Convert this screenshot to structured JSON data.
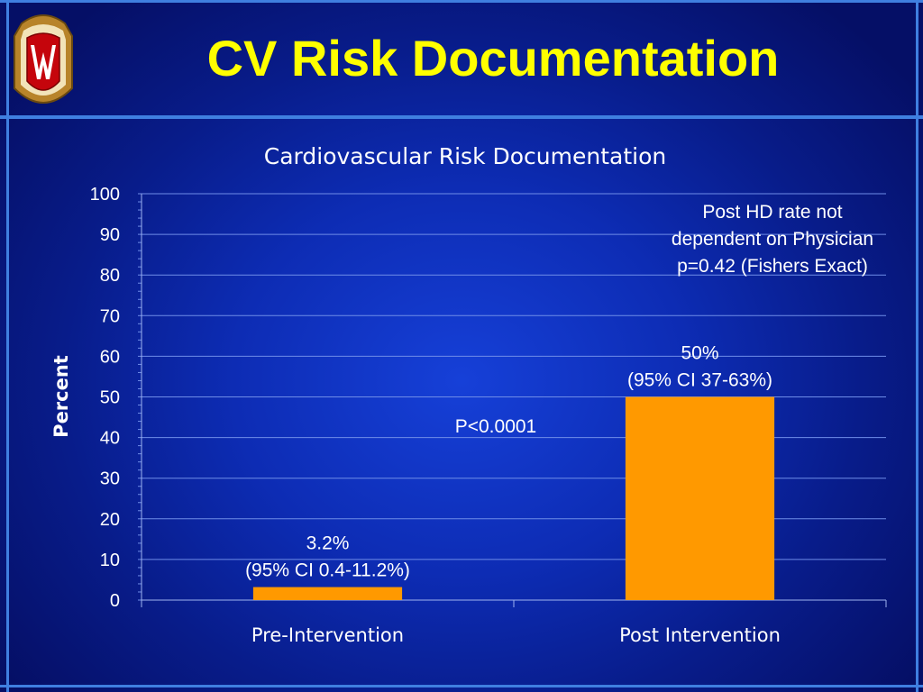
{
  "slide": {
    "title": "CV Risk Documentation",
    "logo": {
      "icon": "university-crest-w-icon",
      "letter": "W"
    },
    "colors": {
      "title": "#ffff00",
      "bar": "#ff9900",
      "background": "#0d2cb4",
      "frame": "#3f7fe0"
    }
  },
  "chart_data": {
    "type": "bar",
    "title": "Cardiovascular Risk Documentation",
    "xlabel": "",
    "ylabel": "Percent",
    "ylim": [
      0,
      100
    ],
    "yticks": [
      "0",
      "10",
      "20",
      "30",
      "40",
      "50",
      "60",
      "70",
      "80",
      "90",
      "100"
    ],
    "grid": true,
    "categories": [
      "Pre-Intervention",
      "Post Intervention"
    ],
    "values": [
      3.2,
      50
    ],
    "bar_labels": [
      [
        "3.2%",
        "(95% CI 0.4-11.2%)"
      ],
      [
        "50%",
        "(95% CI 37-63%)"
      ]
    ],
    "annotations": {
      "p_value": "P<0.0001",
      "note": [
        "Post HD rate not",
        "dependent on Physician",
        "p=0.42 (Fishers Exact)"
      ]
    }
  }
}
